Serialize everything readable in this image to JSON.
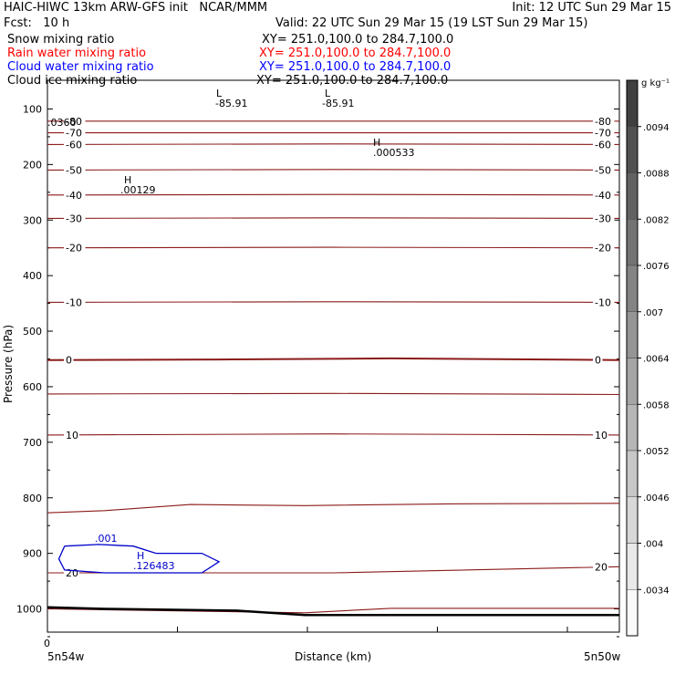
{
  "header": {
    "title": "HAIC-HIWC 13km ARW-GFS init   NCAR/MMM",
    "init": "Init: 12 UTC Sun 29 Mar 15",
    "fcst": "Fcst:   10 h",
    "valid": "Valid: 22 UTC Sun 29 Mar 15 (19 LST Sun 29 Mar 15)",
    "fields": [
      {
        "name": "Snow mixing ratio",
        "xy": "XY= 251.0,100.0 to 284.7,100.0",
        "color": "#000000"
      },
      {
        "name": "Rain water mixing ratio",
        "xy": "XY= 251.0,100.0 to 284.7,100.0",
        "color": "#ff0000"
      },
      {
        "name": "Cloud water mixing ratio",
        "xy": "XY= 251.0,100.0 to 284.7,100.0",
        "color": "#0000ff"
      },
      {
        "name": "Cloud ice mixing ratio",
        "xy": "XY= 251.0,100.0 to 284.7,100.0",
        "color": "#000000"
      }
    ]
  },
  "axes": {
    "ylabel": "Pressure (hPa)",
    "xlabel": "Distance (km)",
    "x_tick_zero": "0",
    "x_left_label": "5n54w",
    "x_right_label": "5n50w"
  },
  "colorbar": {
    "units": "g kg⁻¹",
    "labels": [
      ".0094",
      ".0088",
      ".0082",
      ".0076",
      ".007",
      ".0064",
      ".0058",
      ".0052",
      ".0046",
      ".004",
      ".0034"
    ]
  },
  "annotations": {
    "lows": [
      {
        "mark": "L",
        "value": "-85.91"
      },
      {
        "mark": "L",
        "value": "-85.91"
      }
    ],
    "highs": [
      {
        "mark": "H",
        "value": ".000533"
      },
      {
        "mark": "H",
        "value": ".00129"
      },
      {
        "mark": "H",
        "value": ".126483"
      }
    ],
    "corner_value": ".0360",
    "cloud_contour_label": ".001"
  },
  "colors": {
    "temperature_contour": "#8b1a1a",
    "cloud_water": "#0000cc",
    "terrain": "#000000"
  },
  "chart_data": {
    "type": "line",
    "title": "",
    "xlabel": "Distance (km)",
    "ylabel": "Pressure (hPa)",
    "ylim": [
      1050,
      50
    ],
    "yticks": [
      100,
      200,
      300,
      400,
      500,
      600,
      700,
      800,
      900,
      1000
    ],
    "series": [
      {
        "label": "-80",
        "p": [
          [
            0,
            122
          ],
          [
            0.5,
            122
          ],
          [
            1,
            122
          ]
        ],
        "label_left": true,
        "label_right": true
      },
      {
        "label": "-70",
        "p": [
          [
            0,
            143
          ],
          [
            0.5,
            143
          ],
          [
            1,
            143
          ]
        ],
        "label_left": true,
        "label_right": true
      },
      {
        "label": "-60",
        "p": [
          [
            0,
            164
          ],
          [
            0.5,
            163
          ],
          [
            1,
            164
          ]
        ],
        "label_left": true,
        "label_right": true
      },
      {
        "label": "-50",
        "p": [
          [
            0,
            210
          ],
          [
            0.5,
            209
          ],
          [
            1,
            210
          ]
        ],
        "label_left": true,
        "label_right": true
      },
      {
        "label": "-40",
        "p": [
          [
            0,
            255
          ],
          [
            0.5,
            254
          ],
          [
            1,
            255
          ]
        ],
        "label_left": true,
        "label_right": true
      },
      {
        "label": "-30",
        "p": [
          [
            0,
            297
          ],
          [
            0.5,
            296
          ],
          [
            1,
            297
          ]
        ],
        "label_left": true,
        "label_right": true
      },
      {
        "label": "-20",
        "p": [
          [
            0,
            350
          ],
          [
            0.5,
            349
          ],
          [
            1,
            350
          ]
        ],
        "label_left": true,
        "label_right": true
      },
      {
        "label": "-10",
        "p": [
          [
            0,
            448
          ],
          [
            0.5,
            447
          ],
          [
            1,
            448
          ]
        ],
        "label_left": true,
        "label_right": true
      },
      {
        "label": "0",
        "p": [
          [
            0,
            552
          ],
          [
            0.3,
            551
          ],
          [
            0.6,
            549
          ],
          [
            1,
            552
          ]
        ],
        "label_left": true,
        "label_right": true,
        "bold": true
      },
      {
        "label": "",
        "p": [
          [
            0,
            613
          ],
          [
            0.5,
            612
          ],
          [
            1,
            614
          ]
        ]
      },
      {
        "label": "10",
        "p": [
          [
            0,
            687
          ],
          [
            0.5,
            685
          ],
          [
            1,
            687
          ]
        ],
        "label_left": true,
        "label_right": true
      },
      {
        "label": "",
        "p": [
          [
            0,
            827
          ],
          [
            0.1,
            823
          ],
          [
            0.25,
            812
          ],
          [
            0.45,
            814
          ],
          [
            0.7,
            811
          ],
          [
            1,
            810
          ]
        ]
      },
      {
        "label": "20",
        "p": [
          [
            0,
            935
          ],
          [
            0.5,
            935
          ],
          [
            1,
            924
          ]
        ],
        "label_left": true,
        "label_right": true
      },
      {
        "label": "",
        "p": [
          [
            0,
            1000
          ],
          [
            0.45,
            1007
          ],
          [
            0.6,
            999
          ],
          [
            1,
            999
          ]
        ]
      }
    ],
    "terrain": {
      "label": "",
      "p": [
        [
          0,
          997
        ],
        [
          0.1,
          1000
        ],
        [
          0.33,
          1003
        ],
        [
          0.45,
          1011
        ],
        [
          0.6,
          1011
        ],
        [
          1,
          1011
        ]
      ]
    },
    "cloud_water": {
      "label": ".001",
      "p": [
        [
          0.03,
          887
        ],
        [
          0.09,
          884
        ],
        [
          0.15,
          887
        ],
        [
          0.19,
          900
        ],
        [
          0.27,
          900
        ],
        [
          0.3,
          915
        ],
        [
          0.27,
          935
        ],
        [
          0.1,
          935
        ],
        [
          0.03,
          930
        ],
        [
          0.02,
          910
        ],
        [
          0.03,
          887
        ]
      ]
    },
    "colorbar_levels": [
      0.0094,
      0.0088,
      0.0082,
      0.0076,
      0.007,
      0.0064,
      0.0058,
      0.0052,
      0.0046,
      0.004,
      0.0034
    ]
  }
}
